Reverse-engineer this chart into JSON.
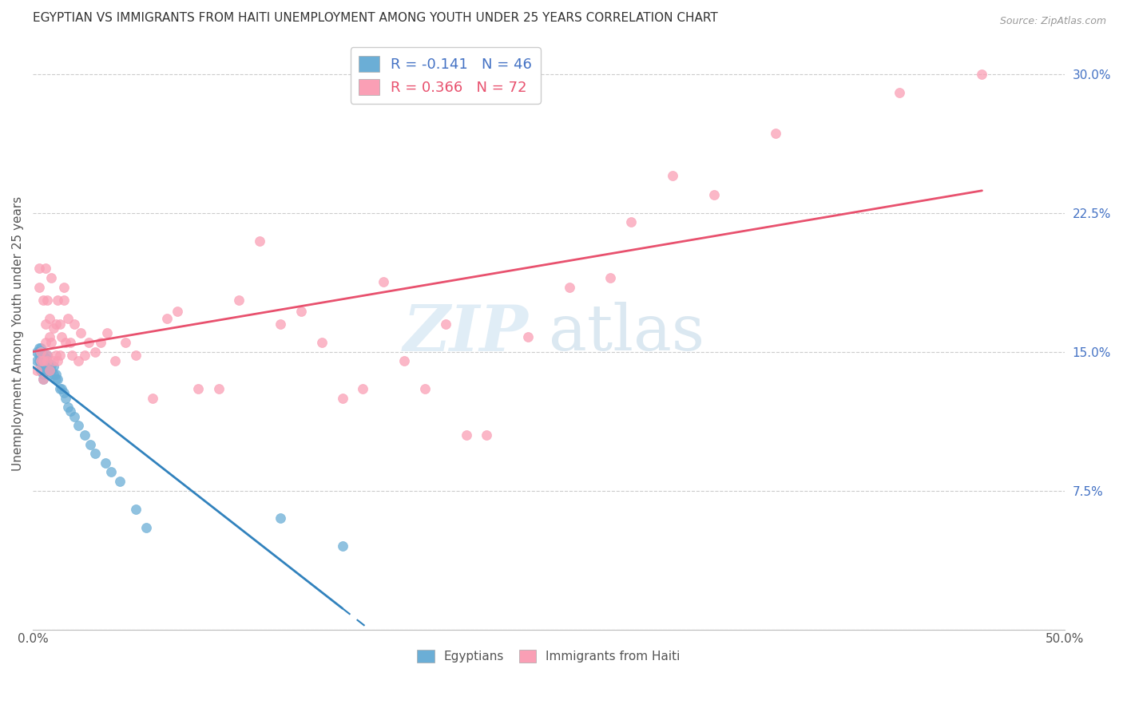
{
  "title": "EGYPTIAN VS IMMIGRANTS FROM HAITI UNEMPLOYMENT AMONG YOUTH UNDER 25 YEARS CORRELATION CHART",
  "source": "Source: ZipAtlas.com",
  "ylabel": "Unemployment Among Youth under 25 years",
  "xlim": [
    0.0,
    0.5
  ],
  "ylim": [
    0.0,
    0.32
  ],
  "xticks": [
    0.0,
    0.1,
    0.2,
    0.3,
    0.4,
    0.5
  ],
  "xticklabels": [
    "0.0%",
    "",
    "",
    "",
    "",
    "50.0%"
  ],
  "ytick_right_labels": [
    "",
    "7.5%",
    "15.0%",
    "22.5%",
    "30.0%"
  ],
  "ytick_right_values": [
    0.0,
    0.075,
    0.15,
    0.225,
    0.3
  ],
  "legend_entries": [
    {
      "label": "R = -0.141   N = 46",
      "color": "#6baed6"
    },
    {
      "label": "R = 0.366   N = 72",
      "color": "#fa9fb5"
    }
  ],
  "legend_labels_bottom": [
    "Egyptians",
    "Immigrants from Haiti"
  ],
  "egyptian_color": "#6baed6",
  "haiti_color": "#fa9fb5",
  "egyptian_trend_color": "#3182bd",
  "haiti_trend_color": "#e8516e",
  "watermark_zip": "ZIP",
  "watermark_atlas": "atlas",
  "egyptians_x": [
    0.002,
    0.002,
    0.003,
    0.003,
    0.003,
    0.004,
    0.004,
    0.004,
    0.004,
    0.005,
    0.005,
    0.005,
    0.005,
    0.006,
    0.006,
    0.006,
    0.007,
    0.007,
    0.007,
    0.008,
    0.008,
    0.009,
    0.009,
    0.01,
    0.01,
    0.011,
    0.011,
    0.012,
    0.013,
    0.014,
    0.015,
    0.016,
    0.017,
    0.018,
    0.02,
    0.022,
    0.025,
    0.028,
    0.03,
    0.035,
    0.038,
    0.042,
    0.05,
    0.055,
    0.12,
    0.15
  ],
  "egyptians_y": [
    0.145,
    0.15,
    0.145,
    0.148,
    0.152,
    0.14,
    0.143,
    0.148,
    0.152,
    0.135,
    0.138,
    0.143,
    0.148,
    0.14,
    0.143,
    0.147,
    0.14,
    0.145,
    0.148,
    0.138,
    0.142,
    0.14,
    0.143,
    0.138,
    0.142,
    0.135,
    0.138,
    0.135,
    0.13,
    0.13,
    0.128,
    0.125,
    0.12,
    0.118,
    0.115,
    0.11,
    0.105,
    0.1,
    0.095,
    0.09,
    0.085,
    0.08,
    0.065,
    0.055,
    0.06,
    0.045
  ],
  "haiti_x": [
    0.002,
    0.003,
    0.003,
    0.004,
    0.004,
    0.005,
    0.005,
    0.005,
    0.006,
    0.006,
    0.006,
    0.007,
    0.007,
    0.007,
    0.008,
    0.008,
    0.008,
    0.009,
    0.009,
    0.01,
    0.01,
    0.011,
    0.011,
    0.012,
    0.012,
    0.013,
    0.013,
    0.014,
    0.015,
    0.015,
    0.016,
    0.017,
    0.018,
    0.019,
    0.02,
    0.022,
    0.023,
    0.025,
    0.027,
    0.03,
    0.033,
    0.036,
    0.04,
    0.045,
    0.05,
    0.058,
    0.065,
    0.07,
    0.08,
    0.09,
    0.1,
    0.11,
    0.12,
    0.13,
    0.14,
    0.15,
    0.16,
    0.17,
    0.18,
    0.19,
    0.2,
    0.21,
    0.22,
    0.24,
    0.26,
    0.28,
    0.29,
    0.31,
    0.33,
    0.36,
    0.42,
    0.46
  ],
  "haiti_y": [
    0.14,
    0.185,
    0.195,
    0.145,
    0.15,
    0.135,
    0.145,
    0.178,
    0.155,
    0.165,
    0.195,
    0.145,
    0.148,
    0.178,
    0.14,
    0.158,
    0.168,
    0.155,
    0.19,
    0.163,
    0.145,
    0.148,
    0.165,
    0.145,
    0.178,
    0.148,
    0.165,
    0.158,
    0.178,
    0.185,
    0.155,
    0.168,
    0.155,
    0.148,
    0.165,
    0.145,
    0.16,
    0.148,
    0.155,
    0.15,
    0.155,
    0.16,
    0.145,
    0.155,
    0.148,
    0.125,
    0.168,
    0.172,
    0.13,
    0.13,
    0.178,
    0.21,
    0.165,
    0.172,
    0.155,
    0.125,
    0.13,
    0.188,
    0.145,
    0.13,
    0.165,
    0.105,
    0.105,
    0.158,
    0.185,
    0.19,
    0.22,
    0.245,
    0.235,
    0.268,
    0.29,
    0.3
  ],
  "background_color": "#ffffff",
  "grid_color": "#cccccc"
}
